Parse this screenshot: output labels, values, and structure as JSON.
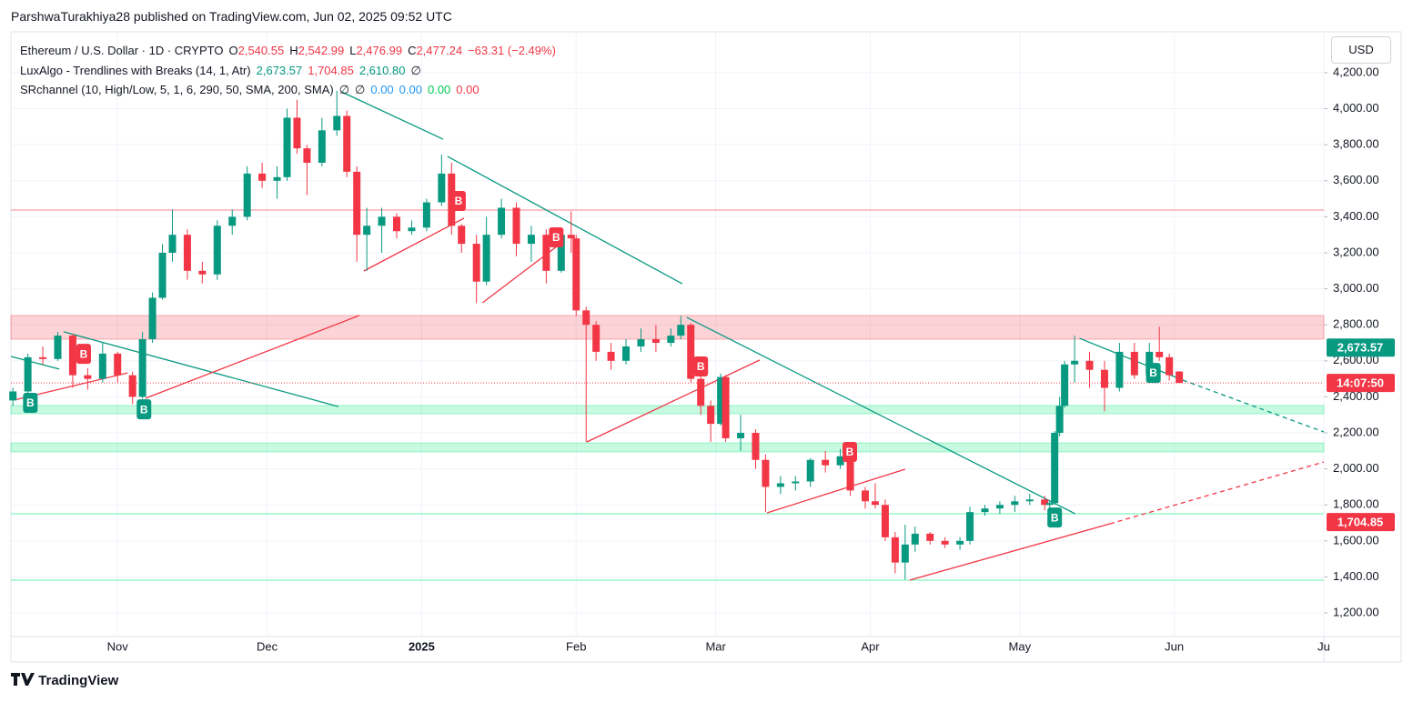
{
  "header": {
    "publisher": "ParshwaTurakhiya28 published on TradingView.com, Jun 02, 2025 09:52 UTC"
  },
  "chart_data": {
    "type": "candlestick",
    "legend": {
      "symbol": "Ethereum / U.S. Dollar · 1D · CRYPTO",
      "ohlc": [
        {
          "key": "O",
          "value": "2,540.55"
        },
        {
          "key": "H",
          "value": "2,542.99"
        },
        {
          "key": "L",
          "value": "2,476.99"
        },
        {
          "key": "C",
          "value": "2,477.24"
        }
      ],
      "change": "−63.31 (−2.49%)",
      "indicators": [
        {
          "name": "LuxAlgo - Trendlines with Breaks (14, 1, Atr)",
          "values": [
            {
              "text": "2,673.57",
              "color": "#089981"
            },
            {
              "text": "1,704.85",
              "color": "#f23645"
            },
            {
              "text": "2,610.80",
              "color": "#089981"
            },
            {
              "text": "∅",
              "color": "#131722"
            }
          ]
        },
        {
          "name": "SRchannel (10, High/Low, 5, 1, 6, 290, 50, SMA, 200, SMA)",
          "values": [
            {
              "text": "∅",
              "color": "#131722"
            },
            {
              "text": "∅",
              "color": "#131722"
            },
            {
              "text": "0.00",
              "color": "#2196f3"
            },
            {
              "text": "0.00",
              "color": "#2196f3"
            },
            {
              "text": "0.00",
              "color": "#00c853"
            },
            {
              "text": "0.00",
              "color": "#f23645"
            }
          ]
        }
      ]
    },
    "currency": "USD",
    "x": [
      0,
      3,
      6,
      9,
      12,
      15,
      18,
      21,
      24,
      26,
      28,
      30,
      32,
      35,
      38,
      41,
      44,
      47,
      50,
      53,
      55,
      57,
      59,
      62,
      65,
      67,
      69,
      71,
      74,
      77,
      80,
      83,
      86,
      88,
      90,
      93,
      95,
      98,
      101,
      104,
      107,
      110,
      112,
      113,
      115,
      117,
      120,
      123,
      126,
      129,
      132,
      134,
      136,
      138,
      140,
      142,
      143,
      146,
      149,
      151,
      154,
      157,
      160,
      163,
      166,
      168,
      171,
      173,
      175,
      177,
      179,
      181,
      184,
      187,
      190,
      192,
      195,
      198,
      201,
      204,
      207,
      208,
      209,
      210,
      211,
      213,
      216,
      219,
      222,
      225,
      228,
      230,
      232,
      234
    ],
    "open": [
      2380,
      2430,
      2620,
      2610,
      2740,
      2520,
      2500,
      2640,
      2520,
      2400,
      2720,
      2950,
      3200,
      3300,
      3100,
      3080,
      3350,
      3400,
      3640,
      3600,
      3620,
      3950,
      3780,
      3700,
      3880,
      3960,
      3650,
      3300,
      3350,
      3400,
      3320,
      3340,
      3480,
      3640,
      3350,
      3250,
      3040,
      3300,
      3450,
      3250,
      3300,
      3100,
      3300,
      3280,
      2880,
      2800,
      2650,
      2600,
      2680,
      2720,
      2700,
      2740,
      2800,
      2500,
      2350,
      2250,
      2510,
      2170,
      2200,
      2050,
      1900,
      1920,
      1930,
      2050,
      2020,
      2070,
      1880,
      1820,
      1800,
      1620,
      1480,
      1580,
      1640,
      1600,
      1580,
      1600,
      1760,
      1780,
      1800,
      1820,
      1830,
      1800,
      1810,
      2200,
      2350,
      2580,
      2600,
      2550,
      2450,
      2650,
      2520,
      2650,
      2620,
      2540.55
    ],
    "high": [
      2450,
      2640,
      2680,
      2760,
      2750,
      2560,
      2700,
      2650,
      2540,
      2760,
      2980,
      3250,
      3440,
      3330,
      3150,
      3380,
      3440,
      3680,
      3700,
      3680,
      4000,
      4050,
      3800,
      3950,
      4100,
      3990,
      3680,
      3450,
      3450,
      3420,
      3380,
      3500,
      3745,
      3700,
      3360,
      3300,
      3400,
      3500,
      3480,
      3350,
      3330,
      3320,
      3430,
      3300,
      2900,
      2820,
      2700,
      2720,
      2780,
      2800,
      2780,
      2850,
      2810,
      2520,
      2380,
      2530,
      2520,
      2300,
      2220,
      2080,
      1960,
      1960,
      2060,
      2100,
      2110,
      2080,
      1900,
      1920,
      1830,
      1650,
      1690,
      1680,
      1650,
      1620,
      1620,
      1790,
      1800,
      1820,
      1850,
      1860,
      1850,
      1820,
      2210,
      2400,
      2600,
      2740,
      2650,
      2600,
      2700,
      2700,
      2700,
      2790,
      2640,
      2542.99
    ],
    "low": [
      2350,
      2420,
      2580,
      2600,
      2450,
      2440,
      2480,
      2480,
      2360,
      2390,
      2700,
      2940,
      3150,
      3050,
      3030,
      3050,
      3300,
      3380,
      3560,
      3500,
      3600,
      3750,
      3520,
      3680,
      3850,
      3620,
      3150,
      3100,
      3200,
      3280,
      3300,
      3320,
      3460,
      3300,
      3200,
      2920,
      3020,
      3280,
      3180,
      3150,
      3030,
      3090,
      3200,
      2850,
      2150,
      2600,
      2550,
      2580,
      2650,
      2650,
      2680,
      2720,
      2480,
      2300,
      2150,
      2240,
      2150,
      2100,
      2000,
      1760,
      1860,
      1880,
      1900,
      1980,
      2000,
      1850,
      1780,
      1780,
      1600,
      1420,
      1385,
      1540,
      1580,
      1560,
      1550,
      1580,
      1740,
      1750,
      1760,
      1800,
      1770,
      1780,
      1800,
      2180,
      2340,
      2480,
      2450,
      2320,
      2430,
      2500,
      2500,
      2600,
      2490,
      2476.99
    ],
    "close": [
      2430,
      2620,
      2610,
      2740,
      2520,
      2500,
      2640,
      2520,
      2400,
      2720,
      2950,
      3200,
      3300,
      3100,
      3080,
      3350,
      3400,
      3640,
      3600,
      3620,
      3950,
      3780,
      3700,
      3880,
      3960,
      3650,
      3300,
      3350,
      3400,
      3320,
      3340,
      3480,
      3640,
      3350,
      3250,
      3040,
      3300,
      3450,
      3250,
      3300,
      3100,
      3300,
      3280,
      2880,
      2800,
      2650,
      2600,
      2680,
      2720,
      2700,
      2740,
      2800,
      2500,
      2350,
      2250,
      2510,
      2170,
      2200,
      2050,
      1900,
      1920,
      1930,
      2050,
      2020,
      2070,
      1880,
      1820,
      1800,
      1620,
      1480,
      1580,
      1640,
      1600,
      1580,
      1600,
      1760,
      1780,
      1800,
      1820,
      1830,
      1800,
      1810,
      2200,
      2350,
      2580,
      2600,
      2550,
      2450,
      2650,
      2520,
      2650,
      2620,
      2520,
      2477.24
    ],
    "up_color": "#089981",
    "down_color": "#f23645",
    "xlim": [
      -0.4,
      263
    ],
    "xticks": [
      {
        "value": 21,
        "label": "Nov"
      },
      {
        "value": 51,
        "label": "Dec"
      },
      {
        "value": 82,
        "label": "2025"
      },
      {
        "value": 113,
        "label": "Feb"
      },
      {
        "value": 141,
        "label": "Mar"
      },
      {
        "value": 172,
        "label": "Apr"
      },
      {
        "value": 202,
        "label": "May"
      },
      {
        "value": 233,
        "label": "Jun"
      },
      {
        "value": 263,
        "label": "Ju"
      }
    ],
    "ylim": [
      1069,
      4427
    ],
    "yticks": [
      {
        "value": 1200,
        "label": "1,200.00"
      },
      {
        "value": 1400,
        "label": "1,400.00"
      },
      {
        "value": 1600,
        "label": "1,600.00"
      },
      {
        "value": 1800,
        "label": "1,800.00"
      },
      {
        "value": 2000,
        "label": "2,000.00"
      },
      {
        "value": 2200,
        "label": "2,200.00"
      },
      {
        "value": 2400,
        "label": "2,400.00"
      },
      {
        "value": 2600,
        "label": "2,600.00"
      },
      {
        "value": 2800,
        "label": "2,800.00"
      },
      {
        "value": 3000,
        "label": "3,000.00"
      },
      {
        "value": 3200,
        "label": "3,200.00"
      },
      {
        "value": 3400,
        "label": "3,400.00"
      },
      {
        "value": 3600,
        "label": "3,600.00"
      },
      {
        "value": 3800,
        "label": "3,800.00"
      },
      {
        "value": 4000,
        "label": "4,000.00"
      },
      {
        "value": 4200,
        "label": "4,200.00"
      }
    ],
    "grid": true,
    "zones": [
      {
        "range": [
          2720,
          2852
        ],
        "color": "#f23645"
      },
      {
        "range": [
          2306,
          2352
        ],
        "color": "#00e676"
      },
      {
        "range": [
          2094,
          2144
        ],
        "color": "#00e676"
      }
    ],
    "levels": [
      {
        "value": 3437,
        "color": "#f23645"
      },
      {
        "value": 1751,
        "color": "#00e676"
      },
      {
        "value": 1382,
        "color": "#00e676"
      }
    ],
    "trendlines": [
      {
        "x": [
          -0.36,
          9.3
        ],
        "y": [
          2624,
          2554
        ],
        "color": "#089981",
        "dashed": false
      },
      {
        "x": [
          10.2,
          65.3
        ],
        "y": [
          2761,
          2346
        ],
        "color": "#089981",
        "dashed": false
      },
      {
        "x": [
          0.2,
          23
        ],
        "y": [
          2382,
          2533
        ],
        "color": "#f23645",
        "dashed": false
      },
      {
        "x": [
          26.6,
          69.5
        ],
        "y": [
          2392,
          2852
        ],
        "color": "#f23645",
        "dashed": false
      },
      {
        "x": [
          65.9,
          86.3
        ],
        "y": [
          4094,
          3831
        ],
        "color": "#089981",
        "dashed": false
      },
      {
        "x": [
          70.4,
          90.5
        ],
        "y": [
          3099,
          3392
        ],
        "color": "#f23645",
        "dashed": false
      },
      {
        "x": [
          87.2,
          134.3
        ],
        "y": [
          3735,
          3028
        ],
        "color": "#089981",
        "dashed": false
      },
      {
        "x": [
          94.2,
          110.6
        ],
        "y": [
          2922,
          3266
        ],
        "color": "#f23645",
        "dashed": false
      },
      {
        "x": [
          135.2,
          213.1
        ],
        "y": [
          2841,
          1751
        ],
        "color": "#089981",
        "dashed": false
      },
      {
        "x": [
          115.1,
          149.8
        ],
        "y": [
          2149,
          2604
        ],
        "color": "#f23645",
        "dashed": false
      },
      {
        "x": [
          151.3,
          179
        ],
        "y": [
          1756,
          1998
        ],
        "color": "#f23645",
        "dashed": false
      },
      {
        "x": [
          179.9,
          220.1
        ],
        "y": [
          1382,
          1695
        ],
        "color": "#f23645",
        "dashed": false
      },
      {
        "x": [
          220.1,
          263
        ],
        "y": [
          1695,
          2038
        ],
        "color": "#f23645",
        "dashed": true
      },
      {
        "x": [
          214,
          234.7
        ],
        "y": [
          2725,
          2493
        ],
        "color": "#089981",
        "dashed": false
      },
      {
        "x": [
          234.7,
          263
        ],
        "y": [
          2493,
          2205
        ],
        "color": "#089981",
        "dashed": true
      }
    ],
    "signals": [
      {
        "label": "B",
        "x": 3.5,
        "y": 2367,
        "color": "#089981"
      },
      {
        "label": "B",
        "x": 14.2,
        "y": 2639,
        "color": "#f23645"
      },
      {
        "label": "B",
        "x": 26.3,
        "y": 2331,
        "color": "#089981"
      },
      {
        "label": "B",
        "x": 89.4,
        "y": 3488,
        "color": "#f23645"
      },
      {
        "label": "B",
        "x": 109,
        "y": 3286,
        "color": "#f23645"
      },
      {
        "label": "B",
        "x": 138,
        "y": 2569,
        "color": "#f23645"
      },
      {
        "label": "B",
        "x": 167.9,
        "y": 2094,
        "color": "#f23645"
      },
      {
        "label": "B",
        "x": 209,
        "y": 1730,
        "color": "#089981"
      },
      {
        "label": "B",
        "x": 228.8,
        "y": 2533,
        "color": "#089981"
      }
    ],
    "current_price": {
      "value": 2477.24,
      "color": "#f23645"
    },
    "price_labels": [
      {
        "value": 2673.57,
        "label": "2,673.57",
        "color": "#089981"
      },
      {
        "value": 2477.24,
        "label": "14:07:50",
        "color": "#f23645"
      },
      {
        "value": 1704.85,
        "label": "1,704.85",
        "color": "#f23645"
      }
    ]
  },
  "footer": {
    "brand": "TradingView"
  }
}
